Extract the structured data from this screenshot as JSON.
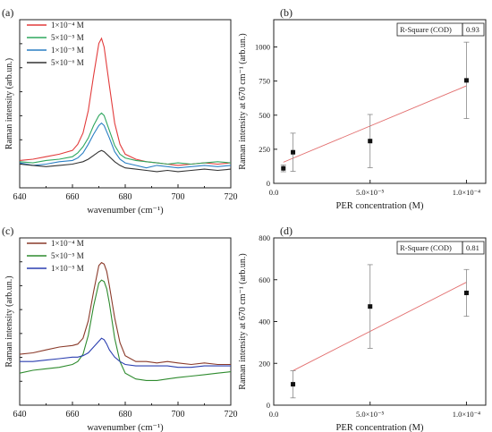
{
  "chart_data": [
    {
      "panel": "(a)",
      "type": "line",
      "xlabel": "wavenumber (cm⁻¹)",
      "ylabel": "Raman intensity (arb.un.)",
      "xlim": [
        640,
        720
      ],
      "xticks": [
        "640",
        "660",
        "680",
        "700",
        "720"
      ],
      "y_tick_labels": "none",
      "legend": "top-left",
      "series": [
        {
          "name": "1×10⁻⁴ M",
          "color": "#e23b3b",
          "x": [
            640,
            645,
            650,
            655,
            660,
            662,
            664,
            666,
            668,
            670,
            671,
            672,
            674,
            676,
            678,
            680,
            684,
            688,
            692,
            696,
            700,
            705,
            710,
            715,
            720
          ],
          "y": [
            0.42,
            0.43,
            0.45,
            0.47,
            0.5,
            0.55,
            0.64,
            0.82,
            1.1,
            1.36,
            1.4,
            1.33,
            1.02,
            0.72,
            0.55,
            0.47,
            0.43,
            0.41,
            0.4,
            0.39,
            0.38,
            0.39,
            0.4,
            0.39,
            0.4
          ]
        },
        {
          "name": "5×10⁻⁵ M",
          "color": "#2fa75f",
          "x": [
            640,
            645,
            650,
            655,
            660,
            662,
            664,
            666,
            668,
            670,
            671,
            672,
            674,
            676,
            678,
            680,
            684,
            688,
            692,
            696,
            700,
            705,
            710,
            715,
            720
          ],
          "y": [
            0.41,
            0.4,
            0.42,
            0.43,
            0.45,
            0.48,
            0.53,
            0.6,
            0.7,
            0.78,
            0.8,
            0.78,
            0.66,
            0.54,
            0.47,
            0.44,
            0.42,
            0.41,
            0.4,
            0.39,
            0.4,
            0.39,
            0.4,
            0.41,
            0.4
          ]
        },
        {
          "name": "1×10⁻⁵ M",
          "color": "#2a7fc4",
          "x": [
            640,
            645,
            650,
            655,
            660,
            662,
            664,
            666,
            668,
            670,
            671,
            672,
            674,
            676,
            678,
            680,
            684,
            688,
            692,
            696,
            700,
            705,
            710,
            715,
            720
          ],
          "y": [
            0.4,
            0.38,
            0.39,
            0.41,
            0.42,
            0.44,
            0.48,
            0.55,
            0.63,
            0.7,
            0.72,
            0.7,
            0.6,
            0.49,
            0.43,
            0.4,
            0.38,
            0.36,
            0.38,
            0.37,
            0.36,
            0.37,
            0.38,
            0.37,
            0.38
          ]
        },
        {
          "name": "5×10⁻⁶ M",
          "color": "#333333",
          "x": [
            640,
            645,
            650,
            655,
            660,
            662,
            664,
            666,
            668,
            670,
            671,
            672,
            674,
            676,
            678,
            680,
            684,
            688,
            692,
            696,
            700,
            705,
            710,
            715,
            720
          ],
          "y": [
            0.39,
            0.38,
            0.37,
            0.38,
            0.39,
            0.4,
            0.41,
            0.43,
            0.46,
            0.49,
            0.5,
            0.49,
            0.45,
            0.41,
            0.38,
            0.36,
            0.35,
            0.34,
            0.33,
            0.34,
            0.33,
            0.34,
            0.35,
            0.34,
            0.35
          ]
        }
      ]
    },
    {
      "panel": "(b)",
      "type": "scatter",
      "xlabel": "PER concentration (M)",
      "ylabel": "Raman intensity at 670 cm⁻¹ (arb.un.)",
      "xlim": [
        0,
        0.00011
      ],
      "ylim": [
        0,
        1200
      ],
      "xticks": [
        {
          "v": 0,
          "label": "0.0"
        },
        {
          "v": 5e-05,
          "label": "5.0×10⁻⁵"
        },
        {
          "v": 0.0001,
          "label": "1.0×10⁻⁴"
        }
      ],
      "yticks": [
        0,
        250,
        500,
        750,
        1000
      ],
      "points": [
        {
          "x": 5e-06,
          "y": 110,
          "err": 25
        },
        {
          "x": 1e-05,
          "y": 228,
          "err": 140
        },
        {
          "x": 5e-05,
          "y": 310,
          "err": 195
        },
        {
          "x": 0.0001,
          "y": 755,
          "err": 280
        }
      ],
      "fit": {
        "x": [
          5e-06,
          0.0001
        ],
        "y": [
          155,
          715
        ]
      },
      "r_square_label": "R-Square (COD)",
      "r_square": "0.93"
    },
    {
      "panel": "(c)",
      "type": "line",
      "xlabel": "wavenumber (cm⁻¹)",
      "ylabel": "Raman intensity (arb.un.)",
      "xlim": [
        640,
        720
      ],
      "xticks": [
        "640",
        "660",
        "680",
        "700",
        "720"
      ],
      "y_tick_labels": "none",
      "legend": "top-left",
      "series": [
        {
          "name": "1×10⁻⁴ M",
          "color": "#8a3a2a",
          "x": [
            640,
            645,
            650,
            655,
            660,
            662,
            664,
            666,
            668,
            670,
            671,
            672,
            673,
            674,
            676,
            678,
            680,
            684,
            688,
            692,
            696,
            700,
            705,
            710,
            715,
            720
          ],
          "y": [
            0.55,
            0.56,
            0.58,
            0.6,
            0.61,
            0.62,
            0.66,
            0.78,
            0.98,
            1.16,
            1.18,
            1.17,
            1.12,
            1.02,
            0.8,
            0.63,
            0.54,
            0.5,
            0.5,
            0.49,
            0.5,
            0.49,
            0.48,
            0.49,
            0.48,
            0.48
          ]
        },
        {
          "name": "5×10⁻⁵ M",
          "color": "#2e8b2e",
          "x": [
            640,
            645,
            650,
            655,
            660,
            662,
            664,
            666,
            668,
            670,
            671,
            672,
            673,
            674,
            676,
            678,
            680,
            684,
            688,
            692,
            696,
            700,
            705,
            710,
            715,
            720
          ],
          "y": [
            0.42,
            0.44,
            0.45,
            0.46,
            0.48,
            0.5,
            0.55,
            0.68,
            0.88,
            1.04,
            1.06,
            1.05,
            1.0,
            0.9,
            0.66,
            0.5,
            0.42,
            0.38,
            0.37,
            0.37,
            0.38,
            0.39,
            0.4,
            0.41,
            0.42,
            0.43
          ]
        },
        {
          "name": "1×10⁻⁵ M",
          "color": "#2b3fb0",
          "x": [
            640,
            645,
            650,
            655,
            660,
            662,
            664,
            666,
            668,
            670,
            671,
            672,
            673,
            674,
            676,
            678,
            680,
            684,
            688,
            692,
            696,
            700,
            705,
            710,
            715,
            720
          ],
          "y": [
            0.5,
            0.5,
            0.51,
            0.52,
            0.53,
            0.53,
            0.54,
            0.56,
            0.6,
            0.64,
            0.66,
            0.65,
            0.62,
            0.58,
            0.53,
            0.5,
            0.48,
            0.47,
            0.47,
            0.47,
            0.47,
            0.46,
            0.46,
            0.47,
            0.47,
            0.47
          ]
        }
      ]
    },
    {
      "panel": "(d)",
      "type": "scatter",
      "xlabel": "PER concentration (M)",
      "ylabel": "Raman intensity at 670 cm⁻¹ (arb.un.)",
      "xlim": [
        0,
        0.00011
      ],
      "ylim": [
        0,
        800
      ],
      "xticks": [
        {
          "v": 0,
          "label": "0.0"
        },
        {
          "v": 5e-05,
          "label": "5.0×10⁻⁵"
        },
        {
          "v": 0.0001,
          "label": "1.0×10⁻⁴"
        }
      ],
      "yticks": [
        0,
        200,
        400,
        600,
        800
      ],
      "points": [
        {
          "x": 1e-05,
          "y": 100,
          "err": 65
        },
        {
          "x": 5e-05,
          "y": 472,
          "err": 200
        },
        {
          "x": 0.0001,
          "y": 537,
          "err": 112
        }
      ],
      "fit": {
        "x": [
          1e-05,
          0.0001
        ],
        "y": [
          165,
          588
        ]
      },
      "r_square_label": "R-Square (COD)",
      "r_square": "0.81"
    }
  ]
}
